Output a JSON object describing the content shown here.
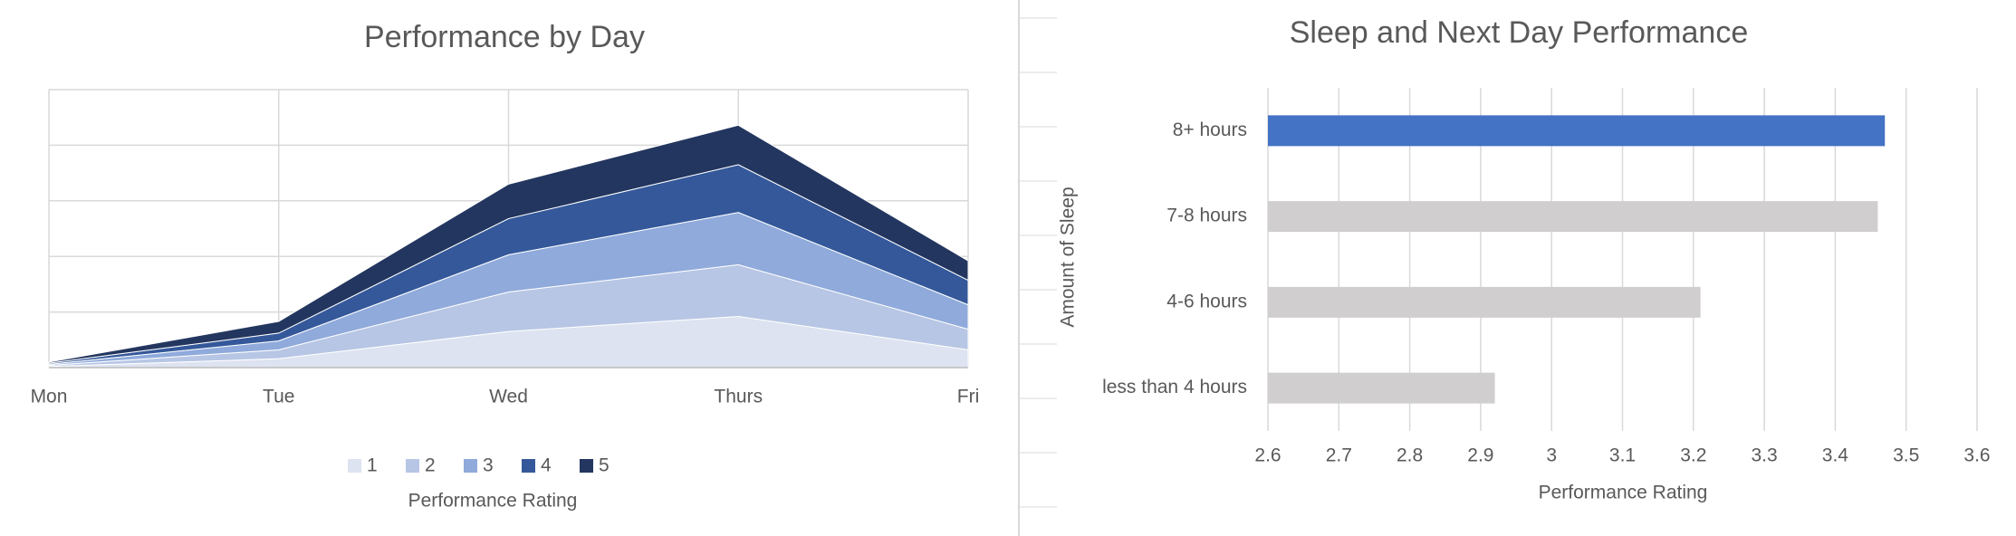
{
  "chart_data": [
    {
      "type": "stacked-area",
      "title": "Performance by Day",
      "legend_title": "Performance Rating",
      "categories": [
        "Mon",
        "Tue",
        "Wed",
        "Thurs",
        "Fri"
      ],
      "ylim": [
        0,
        50
      ],
      "yticks": [
        0,
        10,
        20,
        30,
        40,
        50
      ],
      "grid": true,
      "legend": "bottom",
      "series": [
        {
          "name": "1",
          "color": "#dde3f0",
          "values": [
            0.2,
            1.6,
            6.5,
            9.2,
            3.2
          ]
        },
        {
          "name": "2",
          "color": "#b7c6e4",
          "values": [
            0.2,
            1.6,
            7.1,
            9.3,
            3.7
          ]
        },
        {
          "name": "3",
          "color": "#8faadb",
          "values": [
            0.2,
            1.6,
            6.7,
            9.4,
            4.4
          ]
        },
        {
          "name": "4",
          "color": "#34589a",
          "values": [
            0.2,
            1.4,
            6.5,
            8.6,
            4.4
          ]
        },
        {
          "name": "5",
          "color": "#23365f",
          "values": [
            0.2,
            2.1,
            6.2,
            7.1,
            3.5
          ]
        }
      ]
    },
    {
      "type": "hbar",
      "title": "Sleep and Next Day Performance",
      "xlabel": "Performance Rating",
      "ylabel": "Amount of Sleep",
      "categories": [
        "8+ hours",
        "7-8 hours",
        "4-6 hours",
        "less than 4 hours"
      ],
      "values": [
        3.47,
        3.46,
        3.21,
        2.92
      ],
      "colors": [
        "#4472c4",
        "#d0cece",
        "#d0cece",
        "#d0cece"
      ],
      "xlim": [
        2.6,
        3.6
      ],
      "xticks": [
        2.6,
        2.7,
        2.8,
        2.9,
        3,
        3.1,
        3.2,
        3.3,
        3.4,
        3.5,
        3.6
      ],
      "grid": true
    }
  ]
}
